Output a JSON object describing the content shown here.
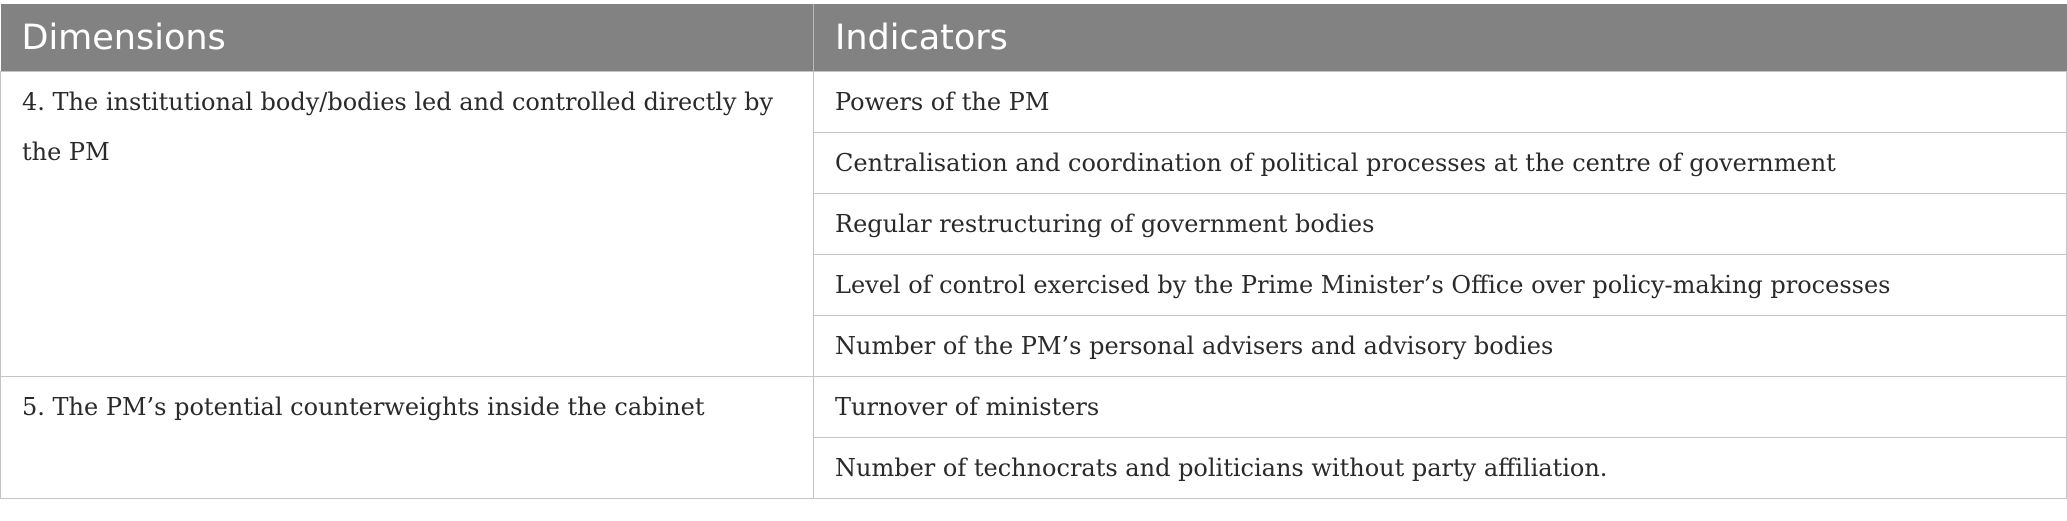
{
  "table": {
    "headers": [
      "Dimensions",
      "Indicators"
    ],
    "groups": [
      {
        "dimension": "4. The institutional body/bodies led and controlled directly by the PM",
        "indicators": [
          "Powers of the PM",
          "Centralisation and coordination of political processes at the centre of government",
          "Regular restructuring of government bodies",
          "Level of control exercised by the Prime Minister’s Office over policy-making processes",
          "Number of the PM’s personal advisers and advisory bodies"
        ]
      },
      {
        "dimension": "5. The PM’s potential counterweights inside the cabinet",
        "indicators": [
          "Turnover of ministers",
          "Number of technocrats and politicians without party affiliation."
        ]
      }
    ]
  },
  "colors": {
    "header_background": "#818281",
    "header_text": "#ffffff",
    "border": "#c4c4c4",
    "body_text": "#2a2a2a"
  }
}
